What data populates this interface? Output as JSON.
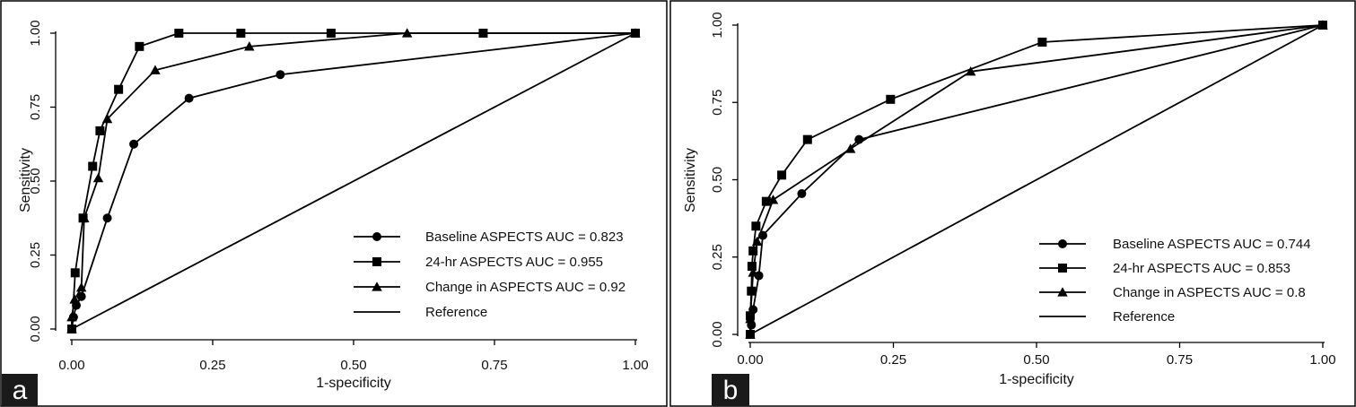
{
  "chart_data": [
    {
      "type": "line",
      "panel_label": "a",
      "xlabel": "1-specificity",
      "ylabel": "Sensitivity",
      "xlim": [
        0,
        1
      ],
      "ylim": [
        0,
        1
      ],
      "x_ticks": [
        "0.00",
        "0.25",
        "0.50",
        "0.75",
        "1.00"
      ],
      "y_ticks": [
        "0.00",
        "0.25",
        "0.50",
        "0.75",
        "1.00"
      ],
      "legend_position": "bottom-right",
      "series": [
        {
          "name": "Baseline ASPECTS AUC = 0.823",
          "marker": "circle",
          "points": [
            [
              0,
              0
            ],
            [
              0.003,
              0.04
            ],
            [
              0.008,
              0.08
            ],
            [
              0.017,
              0.11
            ],
            [
              0.063,
              0.375
            ],
            [
              0.11,
              0.625
            ],
            [
              0.208,
              0.78
            ],
            [
              0.37,
              0.86
            ],
            [
              1,
              1
            ]
          ]
        },
        {
          "name": "24-hr ASPECTS AUC = 0.955",
          "marker": "square",
          "points": [
            [
              0,
              0
            ],
            [
              0.006,
              0.19
            ],
            [
              0.02,
              0.375
            ],
            [
              0.037,
              0.55
            ],
            [
              0.05,
              0.67
            ],
            [
              0.083,
              0.81
            ],
            [
              0.12,
              0.955
            ],
            [
              0.19,
              1
            ],
            [
              0.3,
              1
            ],
            [
              0.46,
              1
            ],
            [
              0.73,
              1
            ],
            [
              1,
              1
            ]
          ]
        },
        {
          "name": "Change in ASPECTS AUC = 0.92",
          "marker": "triangle",
          "points": [
            [
              0,
              0
            ],
            [
              0,
              0.04
            ],
            [
              0.005,
              0.1
            ],
            [
              0.017,
              0.14
            ],
            [
              0.022,
              0.375
            ],
            [
              0.047,
              0.51
            ],
            [
              0.063,
              0.71
            ],
            [
              0.148,
              0.875
            ],
            [
              0.315,
              0.955
            ],
            [
              0.595,
              1
            ],
            [
              1,
              1
            ]
          ]
        },
        {
          "name": "Reference",
          "marker": "none",
          "points": [
            [
              0,
              0
            ],
            [
              1,
              1
            ]
          ]
        }
      ]
    },
    {
      "type": "line",
      "panel_label": "b",
      "xlabel": "1-specificity",
      "ylabel": "Sensitivity",
      "xlim": [
        0,
        1
      ],
      "ylim": [
        0,
        1
      ],
      "x_ticks": [
        "0.00",
        "0.25",
        "0.50",
        "0.75",
        "1.00"
      ],
      "y_ticks": [
        "0.00",
        "0.25",
        "0.50",
        "0.75",
        "1.00"
      ],
      "legend_position": "bottom-right",
      "series": [
        {
          "name": "Baseline ASPECTS AUC = 0.744",
          "marker": "circle",
          "points": [
            [
              0,
              0
            ],
            [
              0.002,
              0.03
            ],
            [
              0.005,
              0.08
            ],
            [
              0.015,
              0.19
            ],
            [
              0.022,
              0.32
            ],
            [
              0.09,
              0.455
            ],
            [
              0.19,
              0.63
            ],
            [
              1,
              1
            ]
          ]
        },
        {
          "name": "24-hr ASPECTS AUC = 0.853",
          "marker": "square",
          "points": [
            [
              0,
              0
            ],
            [
              0,
              0.06
            ],
            [
              0.002,
              0.14
            ],
            [
              0.003,
              0.22
            ],
            [
              0.005,
              0.27
            ],
            [
              0.01,
              0.35
            ],
            [
              0.028,
              0.43
            ],
            [
              0.055,
              0.515
            ],
            [
              0.1,
              0.63
            ],
            [
              0.245,
              0.76
            ],
            [
              0.51,
              0.945
            ],
            [
              1,
              1
            ]
          ]
        },
        {
          "name": "Change in ASPECTS AUC = 0.8",
          "marker": "triangle",
          "points": [
            [
              0,
              0
            ],
            [
              0,
              0.05
            ],
            [
              0.005,
              0.2
            ],
            [
              0.012,
              0.3
            ],
            [
              0.04,
              0.435
            ],
            [
              0.175,
              0.6
            ],
            [
              0.385,
              0.85
            ],
            [
              1,
              1
            ]
          ]
        },
        {
          "name": "Reference",
          "marker": "none",
          "points": [
            [
              0,
              0
            ],
            [
              1,
              1
            ]
          ]
        }
      ]
    }
  ]
}
